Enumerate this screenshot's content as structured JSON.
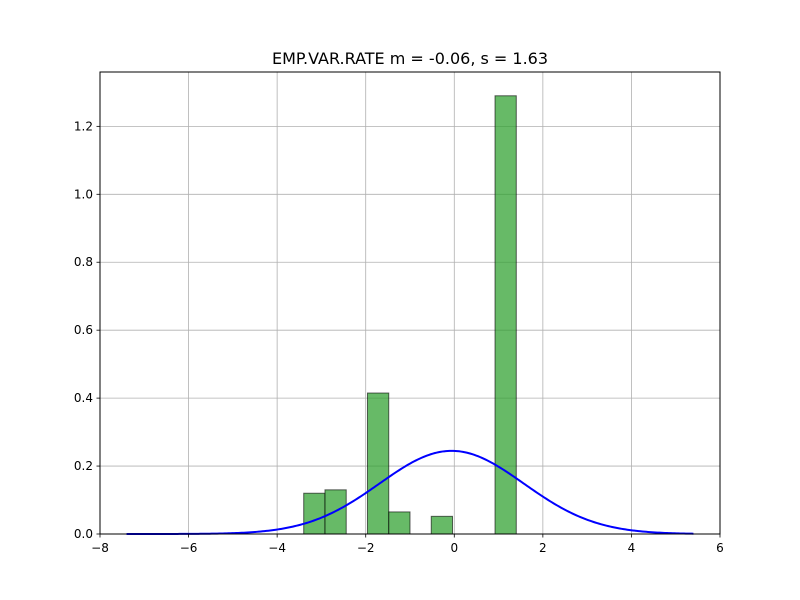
{
  "chart_data": {
    "type": "bar",
    "title": "EMP.VAR.RATE  m = -0.06,  s = 1.63",
    "xlabel": "",
    "ylabel": "",
    "xlim": [
      -8,
      6
    ],
    "ylim": [
      0,
      1.36
    ],
    "x_ticks": [
      -8,
      -6,
      -4,
      -2,
      0,
      2,
      4,
      6
    ],
    "x_tick_labels": [
      "−8",
      "−6",
      "−4",
      "−2",
      "0",
      "2",
      "4",
      "6"
    ],
    "y_ticks": [
      0.0,
      0.2,
      0.4,
      0.6,
      0.8,
      1.0,
      1.2
    ],
    "y_tick_labels": [
      "0.0",
      "0.2",
      "0.4",
      "0.6",
      "0.8",
      "1.0",
      "1.2"
    ],
    "grid": true,
    "series": [
      {
        "type": "histogram",
        "color": "#2ca02c",
        "bins": [
          {
            "x0": -3.4,
            "x1": -2.92,
            "value": 0.12
          },
          {
            "x0": -2.92,
            "x1": -2.44,
            "value": 0.13
          },
          {
            "x0": -1.96,
            "x1": -1.48,
            "value": 0.415
          },
          {
            "x0": -1.48,
            "x1": -1.0,
            "value": 0.065
          },
          {
            "x0": -0.52,
            "x1": -0.04,
            "value": 0.052
          },
          {
            "x0": 0.92,
            "x1": 1.4,
            "value": 1.29
          }
        ]
      },
      {
        "type": "line",
        "color": "#0000ff",
        "normal": {
          "mean": -0.06,
          "std": 1.63,
          "x_start": -7.4,
          "x_end": 5.4
        }
      }
    ]
  }
}
